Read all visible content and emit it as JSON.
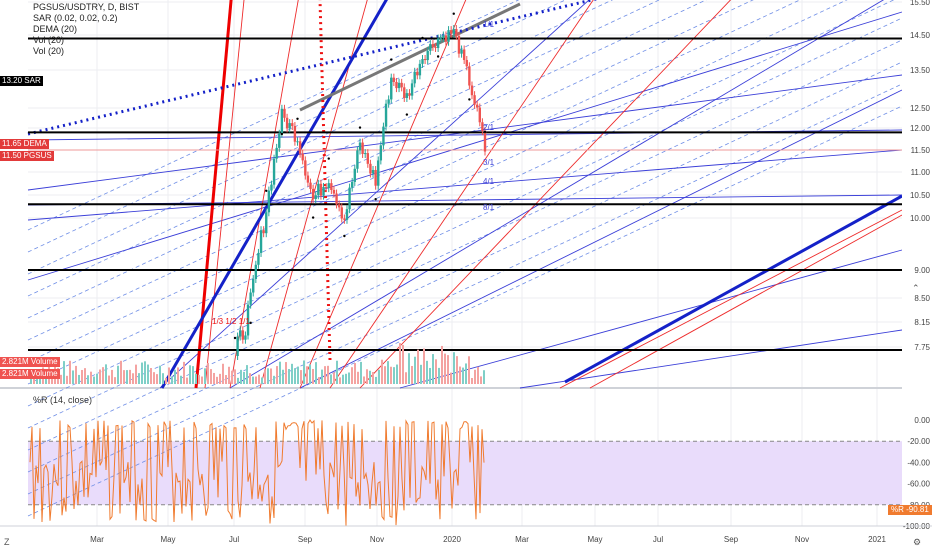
{
  "legend": {
    "symbol_line": "PGSUS/USDTRY, D, BIST",
    "sar_line": "SAR (0.02, 0.02, 0.2)",
    "dema_line": "DEMA (20)",
    "vol1_line": "Vol (20)",
    "vol2_line": "Vol (20)"
  },
  "tags": {
    "sar_label": "SAR",
    "sar_value": "13.20",
    "dema_label": "DEMA",
    "dema_value": "11.65",
    "pgsus_label": "PGSUS",
    "pgsus_value": "11.50",
    "vol1_label": "Volume",
    "vol1_value": "2.821M",
    "vol2_label": "Volume",
    "vol2_value": "2.821M"
  },
  "indicator": {
    "title": "%R (14, close)",
    "badge_label": "%R",
    "badge_value": "-90.81"
  },
  "colors": {
    "up": "#26a69a",
    "down": "#ef5350",
    "blue": "#1e22d1",
    "red": "#e31b1b",
    "band": "#e9dcfb",
    "wr_line": "#f07b2f",
    "grid": "#eceef2"
  },
  "icons": {
    "settings": "gear-icon",
    "collapse": "chevron-up-icon"
  },
  "chart_data": {
    "type": "candlestick",
    "title": "PGSUS/USDTRY, D, BIST",
    "y_axis": {
      "ticks": [
        15.5,
        14.5,
        13.5,
        12.5,
        12.0,
        11.5,
        11.0,
        10.5,
        10.0,
        9.0,
        8.5,
        8.15,
        7.75
      ],
      "labels": [
        "15.50",
        "14.50",
        "13.50",
        "12.50",
        "12.00",
        "11.50",
        "11.00",
        "10.50",
        "10.00",
        "9.00",
        "8.50",
        "8.15",
        "7.75"
      ],
      "scale": "log"
    },
    "x_axis": {
      "labels": [
        "Mar",
        "May",
        "Jul",
        "Sep",
        "Nov",
        "2020",
        "Mar",
        "May",
        "Jul",
        "Sep",
        "Nov",
        "2021"
      ]
    },
    "last_close": 11.5,
    "dema_last": 11.65,
    "sar_last": 13.2,
    "volume_last": "2.821M",
    "horizontal_levels": [
      14.4,
      11.9,
      10.3,
      9.0,
      7.7
    ],
    "fan_labels": [
      "1/1",
      "2/1",
      "3/1",
      "4/1",
      "8/1"
    ],
    "annotation": "1/3 1/2 1/1",
    "price_series": [
      {
        "month": "Jun",
        "close": 7.6
      },
      {
        "month": "Jul",
        "close": 8.4
      },
      {
        "month": "Aug",
        "close": 10.2
      },
      {
        "month": "Aug",
        "close": 12.3
      },
      {
        "month": "Sep",
        "close": 11.8
      },
      {
        "month": "Sep",
        "close": 10.4
      },
      {
        "month": "Oct",
        "close": 10.9
      },
      {
        "month": "Oct",
        "close": 10.0
      },
      {
        "month": "Nov",
        "close": 11.6
      },
      {
        "month": "Nov",
        "close": 10.8
      },
      {
        "month": "Dec",
        "close": 13.3
      },
      {
        "month": "Dec",
        "close": 12.8
      },
      {
        "month": "Dec",
        "close": 13.9
      },
      {
        "month": "Jan",
        "close": 14.4
      },
      {
        "month": "Jan",
        "close": 14.6
      },
      {
        "month": "Jan",
        "close": 13.2
      },
      {
        "month": "Feb",
        "close": 11.5
      }
    ],
    "williams_r": {
      "name": "%R (14, close)",
      "levels": [
        -20,
        -80
      ],
      "ticks": [
        "0.00",
        "-20.00",
        "-40.00",
        "-60.00",
        "-80.00",
        "-100.00"
      ],
      "last": -90.81
    }
  }
}
